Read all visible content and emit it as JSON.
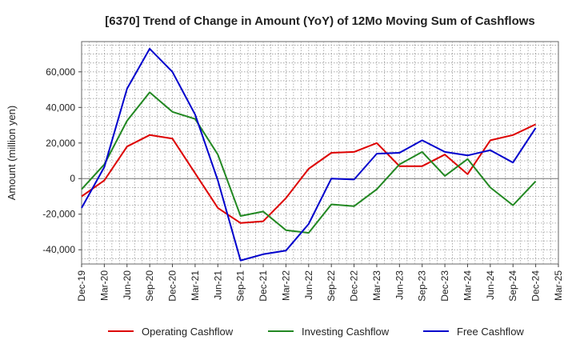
{
  "chart_data": {
    "type": "line",
    "title": "[6370]  Trend of Change in Amount (YoY) of 12Mo Moving Sum of Cashflows",
    "xlabel": "",
    "ylabel": "Amount (million yen)",
    "ylim": [
      -48000,
      77000
    ],
    "yticks": [
      -40000,
      -20000,
      0,
      20000,
      40000,
      60000
    ],
    "ytick_labels": [
      "-40,000",
      "-20,000",
      "0",
      "20,000",
      "40,000",
      "60,000"
    ],
    "categories": [
      "Dec-19",
      "Mar-20",
      "Jun-20",
      "Sep-20",
      "Dec-20",
      "Mar-21",
      "Jun-21",
      "Sep-21",
      "Dec-21",
      "Mar-22",
      "Jun-22",
      "Sep-22",
      "Dec-22",
      "Mar-23",
      "Jun-23",
      "Sep-23",
      "Dec-23",
      "Mar-24",
      "Jun-24",
      "Sep-24",
      "Dec-24",
      "Mar-25"
    ],
    "grid": true,
    "legend_position": "bottom",
    "series": [
      {
        "name": "Operating Cashflow",
        "color": "#dd0000",
        "values": [
          -10000,
          -1000,
          18000,
          24500,
          22500,
          3000,
          -16500,
          -25000,
          -24000,
          -11000,
          5500,
          14500,
          15000,
          20000,
          7000,
          7000,
          13500,
          2500,
          21500,
          24500,
          30500,
          null
        ]
      },
      {
        "name": "Investing Cashflow",
        "color": "#228822",
        "values": [
          -6000,
          8000,
          32500,
          48500,
          37500,
          33500,
          13500,
          -21000,
          -18500,
          -29000,
          -30500,
          -14500,
          -15500,
          -6000,
          8000,
          15000,
          1500,
          11000,
          -5000,
          -15000,
          -1500,
          null
        ]
      },
      {
        "name": "Free Cashflow",
        "color": "#0000cc",
        "values": [
          -16500,
          6500,
          50500,
          73000,
          60000,
          36000,
          -1000,
          -46000,
          -42500,
          -40500,
          -25500,
          0,
          -500,
          14000,
          14500,
          21500,
          15000,
          13000,
          16000,
          9000,
          28500,
          null
        ]
      }
    ]
  }
}
